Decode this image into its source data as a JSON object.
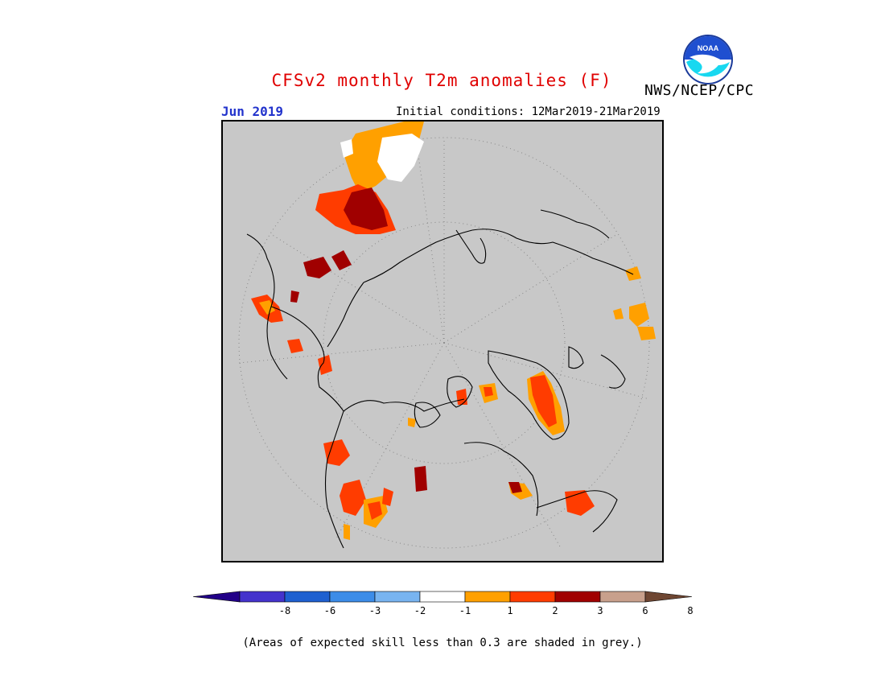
{
  "header": {
    "title": "CFSv2 monthly T2m anomalies (F)",
    "agency": "NWS/NCEP/CPC",
    "logo_text": "NOAA",
    "month": "Jun 2019",
    "initial_conditions": "Initial conditions: 12Mar2019-21Mar2019"
  },
  "legend": {
    "bins": [
      {
        "color": "#220088"
      },
      {
        "color": "#4433cc"
      },
      {
        "color": "#1e60d0"
      },
      {
        "color": "#3c8ce8"
      },
      {
        "color": "#78b4f0"
      },
      {
        "color": "#ffffff"
      },
      {
        "color": "#ffa000"
      },
      {
        "color": "#ff3c00"
      },
      {
        "color": "#a00000"
      },
      {
        "color": "#c8a08c"
      },
      {
        "color": "#6e4632"
      }
    ],
    "ticks": [
      "-8",
      "-6",
      "-3",
      "-2",
      "-1",
      "1",
      "2",
      "3",
      "6",
      "8"
    ]
  },
  "footnote": "(Areas of expected skill less than 0.3 are shaded in grey.)",
  "map": {
    "background_color": "#c8c8c8",
    "regions": [
      {
        "name": "pacific-white",
        "color": "#ffffff"
      },
      {
        "name": "pacific-orange",
        "color": "#ffa000"
      },
      {
        "name": "western-russia-red",
        "color": "#ff3c00"
      },
      {
        "name": "western-russia-darkred",
        "color": "#a00000"
      },
      {
        "name": "greenland-orange",
        "color": "#ffa000"
      },
      {
        "name": "greenland-red",
        "color": "#ff3c00"
      },
      {
        "name": "scandinavia-red",
        "color": "#ff3c00"
      }
    ]
  }
}
